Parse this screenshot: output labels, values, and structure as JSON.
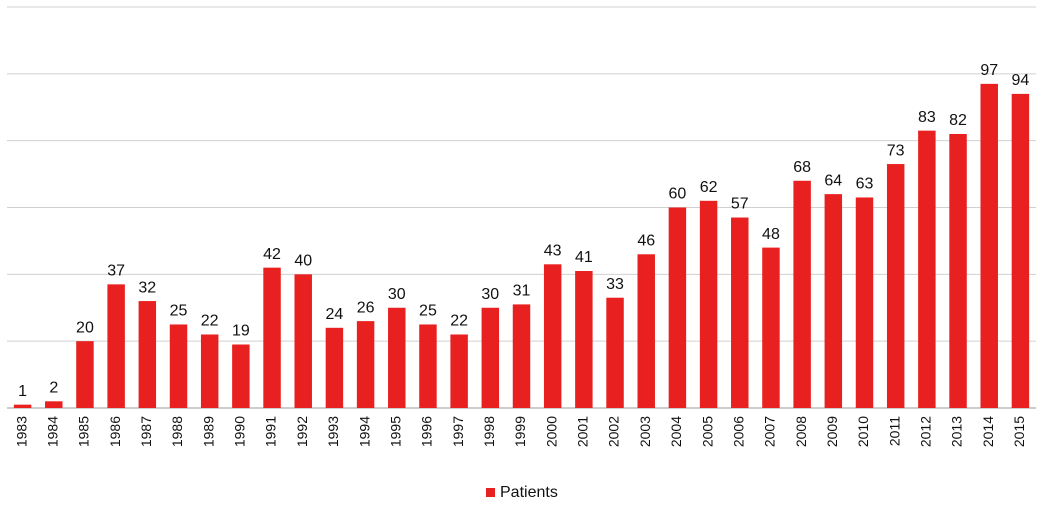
{
  "chart_data": {
    "type": "bar",
    "categories": [
      "1983",
      "1984",
      "1985",
      "1986",
      "1987",
      "1988",
      "1989",
      "1990",
      "1991",
      "1992",
      "1993",
      "1994",
      "1995",
      "1996",
      "1997",
      "1998",
      "1999",
      "2000",
      "2001",
      "2002",
      "2003",
      "2004",
      "2005",
      "2006",
      "2007",
      "2008",
      "2009",
      "2010",
      "2011",
      "2012",
      "2013",
      "2014",
      "2015"
    ],
    "series": [
      {
        "name": "Patients",
        "color": "#e8201f",
        "values": [
          1,
          2,
          20,
          37,
          32,
          25,
          22,
          19,
          42,
          40,
          24,
          26,
          30,
          25,
          22,
          30,
          31,
          43,
          41,
          33,
          46,
          60,
          62,
          57,
          48,
          68,
          64,
          63,
          73,
          83,
          82,
          97,
          94
        ]
      }
    ],
    "ylim": [
      0,
      120
    ],
    "yticks": [
      0,
      20,
      40,
      60,
      80,
      100,
      120
    ],
    "grid": true,
    "legend": "bottom"
  }
}
